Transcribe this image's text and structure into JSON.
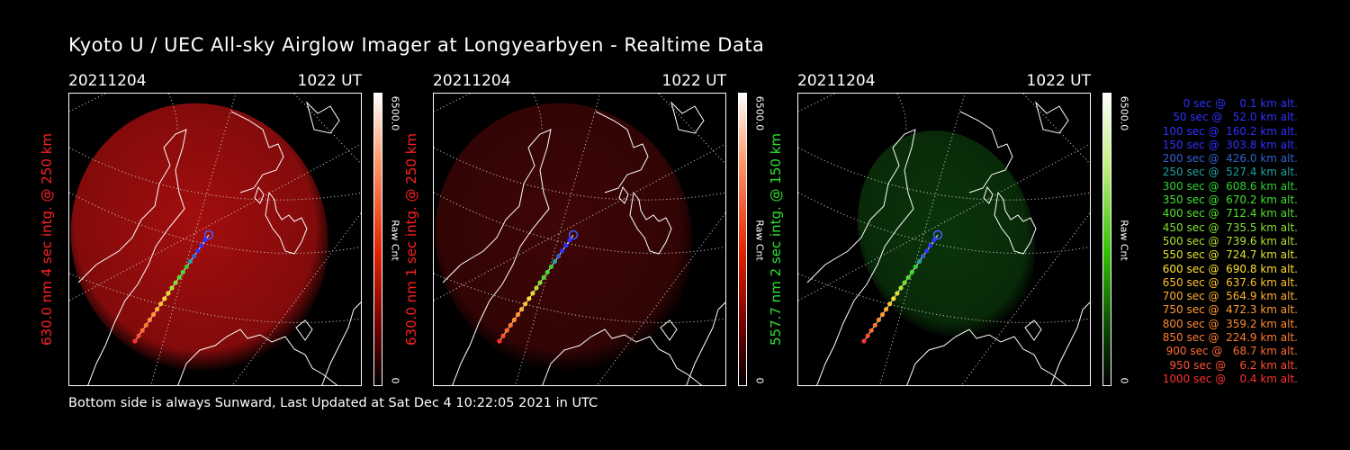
{
  "title": "Kyoto U / UEC All-sky Airglow Imager at Longyearbyen - Realtime Data",
  "footer": "Bottom side is always Sunward, Last Updated at Sat Dec  4 10:22:05 2021 in UTC",
  "panels": [
    {
      "date": "20211204",
      "time": "1022 UT",
      "side_label": "630.0 nm 4 sec intg. @ 250 km",
      "label_color": "#ff2020",
      "cbar_max": "6500.0",
      "cbar_unit": "Raw Cnt",
      "cbar_min": "0",
      "glow_color": "#c01010",
      "glow_opacity": 0.85
    },
    {
      "date": "20211204",
      "time": "1022 UT",
      "side_label": "630.0 nm 1 sec intg. @ 250 km",
      "label_color": "#ff2020",
      "cbar_max": "6500.0",
      "cbar_unit": "Raw Cnt",
      "cbar_min": "0",
      "glow_color": "#5a0808",
      "glow_opacity": 0.7
    },
    {
      "date": "20211204",
      "time": "1022 UT",
      "side_label": "557.7 nm 2 sec intg. @ 150 km",
      "label_color": "#30e030",
      "cbar_max": "6500.0",
      "cbar_unit": "Raw Cnt",
      "cbar_min": "0",
      "glow_color": "#0c3a0c",
      "glow_opacity": 0.9
    }
  ],
  "legend": [
    {
      "text": "   0 sec @    0.1 km alt.",
      "color": "#3030ff"
    },
    {
      "text": "  50 sec @   52.0 km alt.",
      "color": "#3030ff"
    },
    {
      "text": " 100 sec @  160.2 km alt.",
      "color": "#3030ff"
    },
    {
      "text": " 150 sec @  303.8 km alt.",
      "color": "#3030ff"
    },
    {
      "text": " 200 sec @  426.0 km alt.",
      "color": "#3060d0"
    },
    {
      "text": " 250 sec @  527.4 km alt.",
      "color": "#20a0a0"
    },
    {
      "text": " 300 sec @  608.6 km alt.",
      "color": "#30d030"
    },
    {
      "text": " 350 sec @  670.2 km alt.",
      "color": "#40e030"
    },
    {
      "text": " 400 sec @  712.4 km alt.",
      "color": "#50e030"
    },
    {
      "text": " 450 sec @  735.5 km alt.",
      "color": "#80e030"
    },
    {
      "text": " 500 sec @  739.6 km alt.",
      "color": "#b0e030"
    },
    {
      "text": " 550 sec @  724.7 km alt.",
      "color": "#e0e030"
    },
    {
      "text": " 600 sec @  690.8 km alt.",
      "color": "#ffe030"
    },
    {
      "text": " 650 sec @  637.6 km alt.",
      "color": "#ffc030"
    },
    {
      "text": " 700 sec @  564.9 km alt.",
      "color": "#ffb030"
    },
    {
      "text": " 750 sec @  472.3 km alt.",
      "color": "#ff9a30"
    },
    {
      "text": " 800 sec @  359.2 km alt.",
      "color": "#ff8a30"
    },
    {
      "text": " 850 sec @  224.9 km alt.",
      "color": "#ff7a30"
    },
    {
      "text": " 900 sec @   68.7 km alt.",
      "color": "#ff6a30"
    },
    {
      "text": " 950 sec @    6.2 km alt.",
      "color": "#ff5030"
    },
    {
      "text": "1000 sec @    0.4 km alt.",
      "color": "#ff3030"
    }
  ]
}
